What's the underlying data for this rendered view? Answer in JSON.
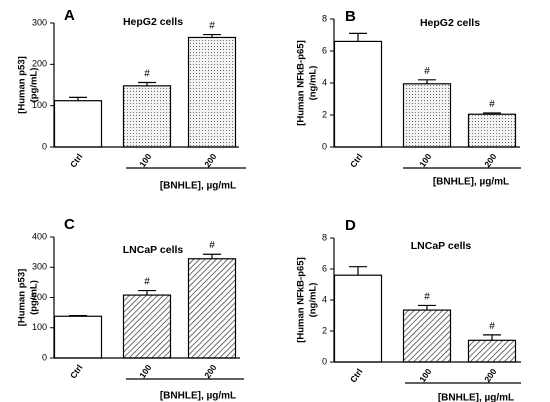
{
  "chart_data": [
    {
      "type": "bar",
      "panel": "A",
      "title": "HepG2 cells",
      "ylabel_lines": [
        "[Human p53]",
        "(pg/mL)"
      ],
      "xlabel": "[BNHLE], µg/mL",
      "categories": [
        "Ctrl",
        "100",
        "200"
      ],
      "values": [
        112,
        148,
        265
      ],
      "errors": [
        8,
        8,
        7
      ],
      "significance": [
        "",
        "#",
        "#"
      ],
      "fills": [
        "white",
        "dots",
        "dots"
      ],
      "ylim": [
        0,
        300
      ],
      "yticks": [
        "0",
        "100",
        "200",
        "300"
      ]
    },
    {
      "type": "bar",
      "panel": "B",
      "title": "HepG2 cells",
      "ylabel_lines": [
        "[Human NFkB-p65]",
        "(ng/mL)"
      ],
      "xlabel": "[BNHLE], µg/mL",
      "categories": [
        "Ctrl",
        "100",
        "200"
      ],
      "values": [
        6.6,
        3.95,
        2.05
      ],
      "errors": [
        0.5,
        0.25,
        0.08
      ],
      "significance": [
        "",
        "#",
        "#"
      ],
      "fills": [
        "white",
        "dots",
        "dots"
      ],
      "ylim": [
        0,
        8
      ],
      "yticks": [
        "0",
        "2",
        "4",
        "6",
        "8"
      ]
    },
    {
      "type": "bar",
      "panel": "C",
      "title": "LNCaP cells",
      "ylabel_lines": [
        "[Human p53]",
        "(pg/mL)"
      ],
      "xlabel": "[BNHLE], µg/mL",
      "categories": [
        "Ctrl",
        "100",
        "200"
      ],
      "values": [
        138,
        208,
        328
      ],
      "errors": [
        2,
        15,
        15
      ],
      "significance": [
        "",
        "#",
        "#"
      ],
      "fills": [
        "white",
        "hatch",
        "hatch"
      ],
      "ylim": [
        0,
        400
      ],
      "yticks": [
        "0",
        "100",
        "200",
        "300",
        "400"
      ]
    },
    {
      "type": "bar",
      "panel": "D",
      "title": "LNCaP cells",
      "ylabel_lines": [
        "[Human NFkB-p65]",
        "(ng/mL)"
      ],
      "xlabel": "[BNHLE], µg/mL",
      "categories": [
        "Ctrl",
        "100",
        "200"
      ],
      "values": [
        5.6,
        3.35,
        1.4
      ],
      "errors": [
        0.55,
        0.3,
        0.35
      ],
      "significance": [
        "",
        "#",
        "#"
      ],
      "fills": [
        "white",
        "hatch",
        "hatch"
      ],
      "ylim": [
        0,
        8
      ],
      "yticks": [
        "0",
        "2",
        "4",
        "6",
        "8"
      ]
    }
  ]
}
